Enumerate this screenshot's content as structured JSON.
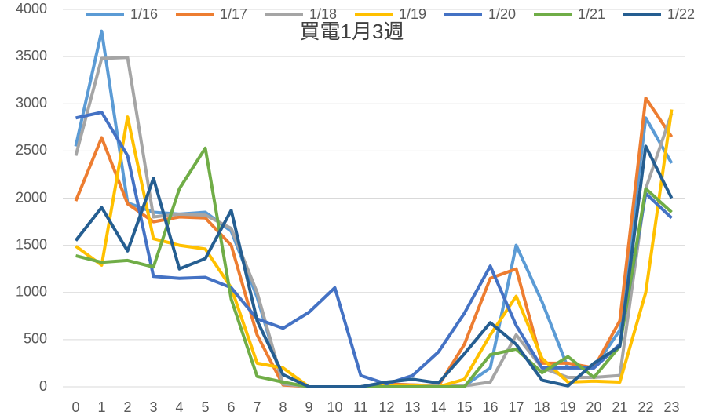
{
  "chart_data": {
    "type": "line",
    "title": "買電1月3週",
    "categories": [
      "0",
      "1",
      "2",
      "3",
      "4",
      "5",
      "6",
      "7",
      "8",
      "9",
      "10",
      "11",
      "12",
      "13",
      "14",
      "15",
      "16",
      "17",
      "18",
      "19",
      "20",
      "21",
      "22",
      "23"
    ],
    "ylim": [
      0,
      4000
    ],
    "yticks": [
      0,
      500,
      1000,
      1500,
      2000,
      2500,
      3000,
      3500,
      4000
    ],
    "grid": true,
    "legend": "top",
    "series": [
      {
        "name": "1/16",
        "color": "#5B9BD5",
        "values": [
          2550,
          3770,
          1950,
          1850,
          1830,
          1850,
          1650,
          950,
          30,
          0,
          0,
          0,
          30,
          20,
          10,
          10,
          200,
          1500,
          900,
          200,
          200,
          600,
          2850,
          2370
        ]
      },
      {
        "name": "1/17",
        "color": "#ED7D31",
        "values": [
          1970,
          2640,
          1940,
          1750,
          1800,
          1790,
          1500,
          550,
          20,
          0,
          0,
          0,
          30,
          20,
          10,
          450,
          1150,
          1250,
          250,
          250,
          200,
          700,
          3060,
          2650
        ]
      },
      {
        "name": "1/18",
        "color": "#A5A5A5",
        "values": [
          2450,
          3480,
          3490,
          1800,
          1830,
          1820,
          1680,
          1000,
          30,
          0,
          0,
          0,
          20,
          10,
          10,
          10,
          50,
          550,
          200,
          100,
          100,
          120,
          2100,
          2900
        ]
      },
      {
        "name": "1/19",
        "color": "#FFC000",
        "values": [
          1490,
          1290,
          2860,
          1570,
          1500,
          1460,
          1050,
          250,
          200,
          0,
          0,
          0,
          20,
          10,
          0,
          80,
          550,
          960,
          300,
          50,
          60,
          50,
          1000,
          2940
        ]
      },
      {
        "name": "1/20",
        "color": "#4472C4",
        "values": [
          2850,
          2910,
          2450,
          1170,
          1150,
          1160,
          1050,
          720,
          620,
          790,
          1050,
          120,
          30,
          120,
          370,
          780,
          1280,
          650,
          200,
          200,
          200,
          450,
          2050,
          1790
        ]
      },
      {
        "name": "1/21",
        "color": "#70AD47",
        "values": [
          1390,
          1320,
          1340,
          1270,
          2100,
          2530,
          930,
          110,
          50,
          0,
          0,
          0,
          0,
          0,
          0,
          0,
          340,
          400,
          150,
          320,
          100,
          430,
          2100,
          1850
        ]
      },
      {
        "name": "1/22",
        "color": "#255E91",
        "values": [
          1550,
          1900,
          1440,
          2210,
          1250,
          1360,
          1870,
          700,
          130,
          0,
          0,
          0,
          50,
          80,
          40,
          350,
          680,
          450,
          70,
          10,
          250,
          430,
          2550,
          2000
        ]
      }
    ]
  }
}
